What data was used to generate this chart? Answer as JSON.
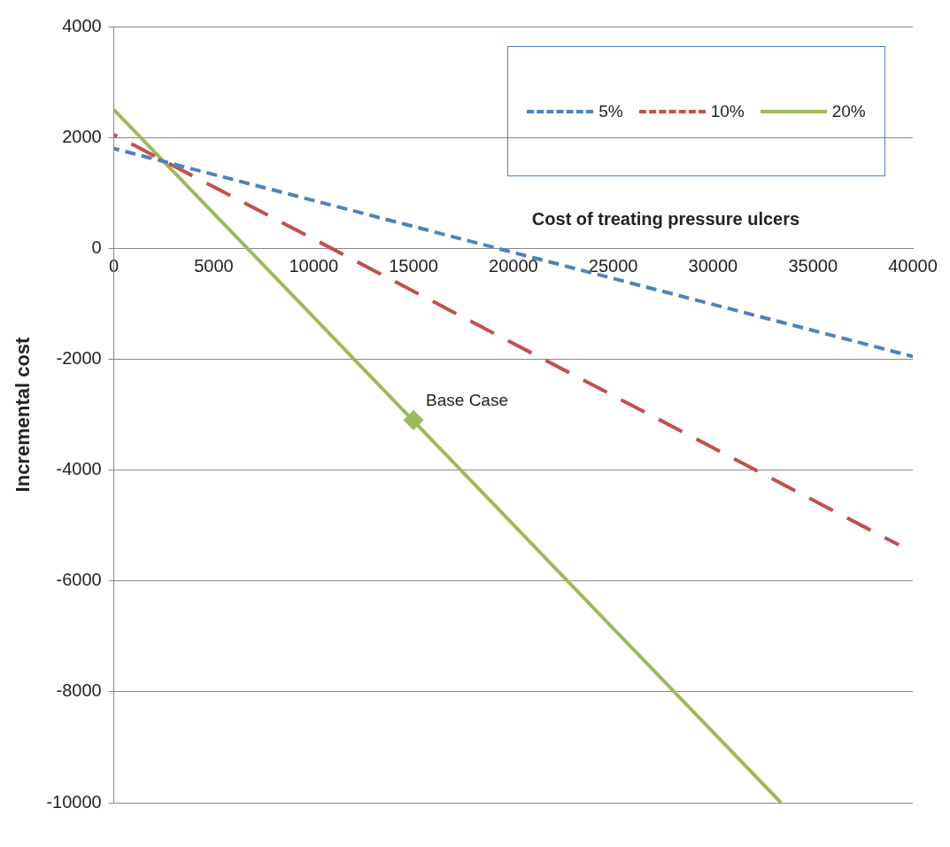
{
  "chart_data": {
    "type": "line",
    "xlabel": "Cost of treating pressure ulcers",
    "ylabel": "Incremental cost",
    "series": [
      {
        "name": "5%",
        "color": "#4f81bd",
        "line_style": "dashed",
        "marker": "none",
        "x": [
          0,
          40000
        ],
        "values": [
          1800,
          -1950
        ]
      },
      {
        "name": "10%",
        "color": "#c0504d",
        "line_style": "dashed",
        "marker": "none",
        "x": [
          0,
          39300
        ],
        "values": [
          2050,
          -5350
        ]
      },
      {
        "name": "20%",
        "color": "#9bbb59",
        "line_style": "solid",
        "marker": "none",
        "x": [
          0,
          33400
        ],
        "values": [
          2500,
          -10000
        ]
      },
      {
        "type": "scatter",
        "color": "#9bbb59",
        "marker": "diamond",
        "x": [
          15000
        ],
        "values": [
          -3100
        ]
      }
    ],
    "xlim": [
      0,
      40000
    ],
    "xticks": [
      0,
      5000,
      10000,
      15000,
      20000,
      25000,
      30000,
      35000,
      40000
    ],
    "ylim": [
      -10000,
      4000
    ],
    "yticks": [
      -10000,
      -8000,
      -6000,
      -4000,
      -2000,
      0,
      2000,
      4000
    ],
    "grid": "y",
    "legend": "top right",
    "annotations": [
      {
        "text": "Base Case",
        "x": 15000,
        "y": -3100
      }
    ]
  }
}
